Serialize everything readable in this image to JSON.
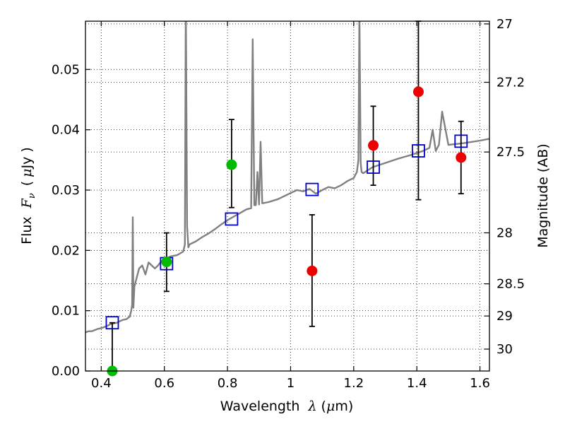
{
  "chart_data": {
    "type": "scatter",
    "xlim": [
      0.35,
      1.63
    ],
    "ylim": [
      0.0,
      0.058
    ],
    "grid": true,
    "x_ticks": [
      0.4,
      0.6,
      0.8,
      1.0,
      1.2,
      1.4,
      1.6
    ],
    "x_tick_labels": [
      "0.4",
      "0.6",
      "0.8",
      "1",
      "1.2",
      "1.4",
      "1.6"
    ],
    "y_ticks": [
      0.0,
      0.01,
      0.02,
      0.03,
      0.04,
      0.05
    ],
    "y_tick_labels": [
      "0.00",
      "0.01",
      "0.02",
      "0.03",
      "0.04",
      "0.05"
    ],
    "mag_ticks": [
      27.0,
      27.2,
      27.5,
      28.0,
      28.5,
      29.0,
      30.0
    ],
    "mag_tick_labels": [
      "27",
      "27.2",
      "27.5",
      "28",
      "28.5",
      "29",
      "30"
    ],
    "xlabel": {
      "text": "Wavelength",
      "symbol": "λ",
      "unit_open": "(",
      "unit_mu": "μ",
      "unit_rest": "m)"
    },
    "ylabel": {
      "text": "Flux",
      "symbol": "F",
      "subscript": "ν",
      "unit_open": "(",
      "unit_mu": "μ",
      "unit_rest": "Jy )"
    },
    "y2label": "Magnitude (AB)",
    "colors": {
      "spectrum": "#808080",
      "model_boxes": "#0000cc",
      "detections": "#00bb00",
      "low_significance": "#ee0000",
      "errorbars": "#000000"
    },
    "spectrum": {
      "x": [
        0.35,
        0.36,
        0.37,
        0.38,
        0.39,
        0.4,
        0.41,
        0.42,
        0.43,
        0.44,
        0.45,
        0.46,
        0.47,
        0.48,
        0.49,
        0.495,
        0.498,
        0.5,
        0.502,
        0.505,
        0.51,
        0.52,
        0.53,
        0.54,
        0.55,
        0.56,
        0.57,
        0.58,
        0.59,
        0.6,
        0.62,
        0.64,
        0.66,
        0.665,
        0.668,
        0.672,
        0.676,
        0.68,
        0.7,
        0.72,
        0.74,
        0.76,
        0.78,
        0.8,
        0.82,
        0.84,
        0.86,
        0.875,
        0.88,
        0.885,
        0.89,
        0.895,
        0.9,
        0.905,
        0.91,
        0.93,
        0.96,
        1.0,
        1.02,
        1.04,
        1.06,
        1.08,
        1.1,
        1.12,
        1.14,
        1.16,
        1.18,
        1.2,
        1.21,
        1.215,
        1.218,
        1.222,
        1.225,
        1.23,
        1.26,
        1.3,
        1.34,
        1.38,
        1.42,
        1.44,
        1.45,
        1.46,
        1.47,
        1.48,
        1.5,
        1.55,
        1.6,
        1.63
      ],
      "y": [
        0.0064,
        0.0066,
        0.0066,
        0.0068,
        0.007,
        0.0071,
        0.0073,
        0.0075,
        0.0078,
        0.0079,
        0.008,
        0.0083,
        0.0085,
        0.0086,
        0.009,
        0.01,
        0.011,
        0.0255,
        0.0105,
        0.014,
        0.015,
        0.017,
        0.0175,
        0.016,
        0.018,
        0.0175,
        0.017,
        0.0175,
        0.0182,
        0.0185,
        0.019,
        0.0192,
        0.0198,
        0.021,
        0.062,
        0.024,
        0.0205,
        0.021,
        0.0215,
        0.0222,
        0.0228,
        0.0235,
        0.0243,
        0.025,
        0.0256,
        0.0262,
        0.0268,
        0.027,
        0.055,
        0.0275,
        0.0275,
        0.033,
        0.0276,
        0.038,
        0.0278,
        0.028,
        0.0285,
        0.0295,
        0.03,
        0.0298,
        0.0302,
        0.0294,
        0.03,
        0.0305,
        0.0303,
        0.0308,
        0.0315,
        0.032,
        0.033,
        0.035,
        0.06,
        0.0345,
        0.033,
        0.0328,
        0.0338,
        0.0345,
        0.0352,
        0.0358,
        0.0365,
        0.037,
        0.04,
        0.0365,
        0.0375,
        0.043,
        0.0375,
        0.0378,
        0.0382,
        0.0385
      ]
    },
    "series": [
      {
        "kind": "model_boxes",
        "x": [
          0.435,
          0.607,
          0.813,
          1.068,
          1.262,
          1.405,
          1.54
        ],
        "y": [
          0.008,
          0.0178,
          0.0252,
          0.0301,
          0.0338,
          0.0365,
          0.0381
        ]
      },
      {
        "kind": "detections",
        "x": [
          0.435,
          0.607,
          0.813
        ],
        "y": [
          0.0,
          0.0181,
          0.0342
        ],
        "err_low": [
          null,
          0.0132,
          0.0271
        ],
        "err_high": [
          null,
          0.0229,
          0.0417
        ]
      },
      {
        "kind": "low_significance",
        "x": [
          1.068,
          1.262,
          1.405,
          1.54
        ],
        "y": [
          0.0166,
          0.0374,
          0.0463,
          0.0354
        ],
        "err_low": [
          0.0074,
          0.0308,
          0.0284,
          0.0294
        ],
        "err_high": [
          0.0259,
          0.0439,
          0.058,
          0.0414
        ]
      },
      {
        "kind": "errorbar_only",
        "x": [
          0.435
        ],
        "err_low": [
          0.0
        ],
        "err_high": [
          0.008
        ]
      }
    ]
  }
}
